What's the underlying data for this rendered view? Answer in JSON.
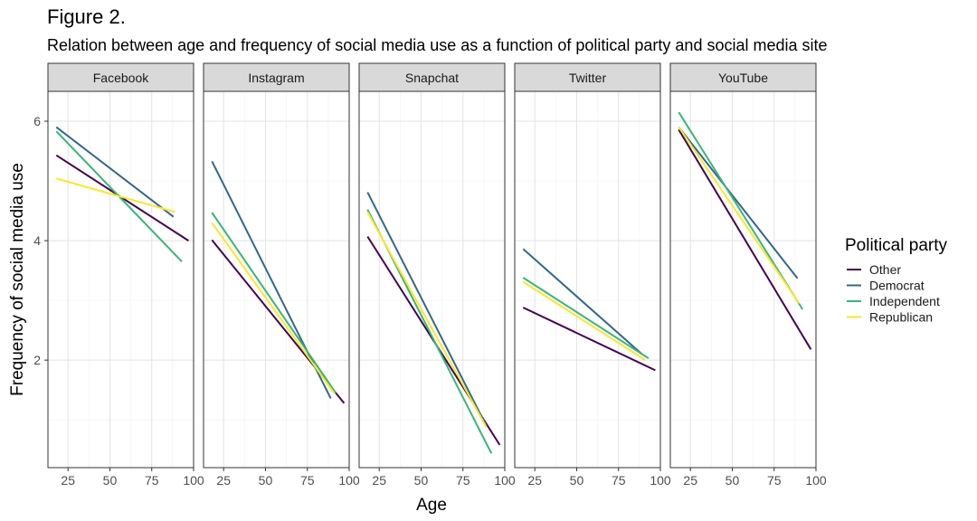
{
  "figure_label": "Figure 2.",
  "subtitle": "Relation between age and frequency of social media use as a function of political party and social media site",
  "chart_data": {
    "type": "line",
    "xlabel": "Age",
    "ylabel": "Frequency of social media use",
    "xlim": [
      13,
      100
    ],
    "ylim": [
      0.2,
      6.5
    ],
    "x_ticks": [
      25,
      50,
      75,
      100
    ],
    "y_ticks": [
      2,
      4,
      6
    ],
    "grid": true,
    "legend": {
      "title": "Political party",
      "position": "right"
    },
    "series_colors": {
      "Other": "#440154",
      "Democrat": "#31688e",
      "Independent": "#35b779",
      "Republican": "#fde725"
    },
    "panels": [
      {
        "title": "Facebook",
        "series": [
          {
            "name": "Other",
            "x": [
              18,
              97
            ],
            "y": [
              5.43,
              4.0
            ]
          },
          {
            "name": "Democrat",
            "x": [
              18,
              88
            ],
            "y": [
              5.9,
              4.4
            ]
          },
          {
            "name": "Independent",
            "x": [
              18,
              93
            ],
            "y": [
              5.83,
              3.65
            ]
          },
          {
            "name": "Republican",
            "x": [
              18,
              89
            ],
            "y": [
              5.04,
              4.48
            ]
          }
        ]
      },
      {
        "title": "Instagram",
        "series": [
          {
            "name": "Other",
            "x": [
              18,
              97
            ],
            "y": [
              4.01,
              1.28
            ]
          },
          {
            "name": "Democrat",
            "x": [
              18,
              89
            ],
            "y": [
              5.33,
              1.36
            ]
          },
          {
            "name": "Independent",
            "x": [
              18,
              92
            ],
            "y": [
              4.47,
              1.45
            ]
          },
          {
            "name": "Republican",
            "x": [
              18,
              91
            ],
            "y": [
              4.3,
              1.45
            ]
          }
        ]
      },
      {
        "title": "Snapchat",
        "series": [
          {
            "name": "Other",
            "x": [
              18,
              97
            ],
            "y": [
              4.07,
              0.58
            ]
          },
          {
            "name": "Democrat",
            "x": [
              18,
              89
            ],
            "y": [
              4.81,
              0.9
            ]
          },
          {
            "name": "Independent",
            "x": [
              18,
              92
            ],
            "y": [
              4.52,
              0.44
            ]
          },
          {
            "name": "Republican",
            "x": [
              18,
              89
            ],
            "y": [
              4.48,
              0.88
            ]
          }
        ]
      },
      {
        "title": "Twitter",
        "series": [
          {
            "name": "Other",
            "x": [
              18,
              97
            ],
            "y": [
              2.88,
              1.83
            ]
          },
          {
            "name": "Democrat",
            "x": [
              18,
              89
            ],
            "y": [
              3.86,
              2.1
            ]
          },
          {
            "name": "Independent",
            "x": [
              18,
              93
            ],
            "y": [
              3.38,
              2.03
            ]
          },
          {
            "name": "Republican",
            "x": [
              18,
              91
            ],
            "y": [
              3.31,
              2.0
            ]
          }
        ]
      },
      {
        "title": "YouTube",
        "series": [
          {
            "name": "Other",
            "x": [
              18,
              97
            ],
            "y": [
              5.86,
              2.18
            ]
          },
          {
            "name": "Democrat",
            "x": [
              18,
              89
            ],
            "y": [
              5.9,
              3.37
            ]
          },
          {
            "name": "Independent",
            "x": [
              18,
              92
            ],
            "y": [
              6.15,
              2.85
            ]
          },
          {
            "name": "Republican",
            "x": [
              18,
              90
            ],
            "y": [
              5.9,
              2.95
            ]
          }
        ]
      }
    ]
  }
}
